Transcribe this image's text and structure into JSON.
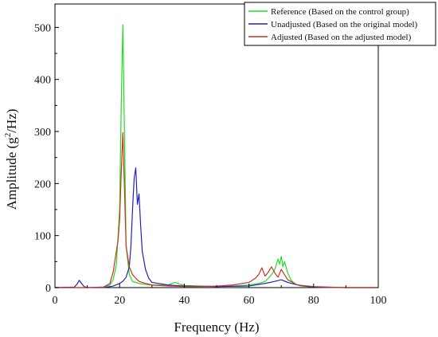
{
  "chart_data": {
    "type": "line",
    "title": "",
    "xlabel": "Frequency (Hz)",
    "ylabel_parts": {
      "pre": "Amplitude (g",
      "sup": "2",
      "post": "/Hz)"
    },
    "xlim": [
      0,
      100
    ],
    "ylim": [
      0,
      545
    ],
    "xticks": [
      0,
      20,
      40,
      60,
      80,
      100
    ],
    "yticks": [
      0,
      100,
      200,
      300,
      400,
      500
    ],
    "grid": false,
    "legend_position": "top-right",
    "series": [
      {
        "name": "Reference (Based on the control group)",
        "color": "#22dd22",
        "x": [
          0,
          10,
          15,
          17,
          18,
          19,
          20,
          20.5,
          21,
          21.5,
          22,
          23,
          24,
          25,
          26,
          28,
          30,
          35,
          37,
          40,
          45,
          50,
          55,
          60,
          63,
          65,
          66,
          67,
          68,
          69,
          69.5,
          70,
          70.5,
          71,
          72,
          73,
          74,
          76,
          80,
          90,
          100
        ],
        "y": [
          0,
          0,
          1,
          5,
          15,
          45,
          150,
          350,
          505,
          300,
          80,
          25,
          12,
          10,
          8,
          6,
          5,
          5,
          10,
          4,
          3,
          2,
          3,
          5,
          8,
          12,
          18,
          25,
          35,
          55,
          45,
          60,
          40,
          50,
          28,
          15,
          8,
          3,
          1,
          0,
          0
        ]
      },
      {
        "name": "Unadjusted (Based on the original model)",
        "color": "#2222bb",
        "x": [
          0,
          6,
          7,
          7.5,
          8,
          9,
          10,
          15,
          18,
          20,
          21,
          22,
          23,
          23.5,
          24,
          24.5,
          25,
          25.5,
          26,
          26.5,
          27,
          28,
          29,
          30,
          35,
          40,
          50,
          60,
          65,
          68,
          70,
          72,
          75,
          80,
          90,
          100
        ],
        "y": [
          0,
          1,
          8,
          14,
          10,
          2,
          0,
          0,
          3,
          8,
          12,
          20,
          40,
          80,
          150,
          210,
          230,
          160,
          180,
          120,
          70,
          35,
          18,
          10,
          5,
          3,
          2,
          3,
          8,
          12,
          15,
          10,
          5,
          1,
          0,
          0
        ]
      },
      {
        "name": "Adjusted (Based on the adjusted model)",
        "color": "#cc3322",
        "x": [
          0,
          10,
          15,
          17,
          18,
          19,
          19.5,
          20,
          20.5,
          21,
          21.5,
          22,
          23,
          24,
          25,
          26,
          28,
          30,
          35,
          40,
          45,
          50,
          55,
          60,
          62,
          63,
          64,
          65,
          66,
          67,
          68,
          69,
          70,
          71,
          72,
          75,
          80,
          90,
          100
        ],
        "y": [
          0,
          0,
          1,
          8,
          30,
          70,
          90,
          130,
          220,
          298,
          190,
          80,
          40,
          25,
          18,
          12,
          8,
          5,
          3,
          2,
          2,
          3,
          5,
          10,
          18,
          25,
          38,
          22,
          30,
          40,
          28,
          20,
          35,
          25,
          15,
          5,
          2,
          0,
          0
        ]
      }
    ]
  }
}
